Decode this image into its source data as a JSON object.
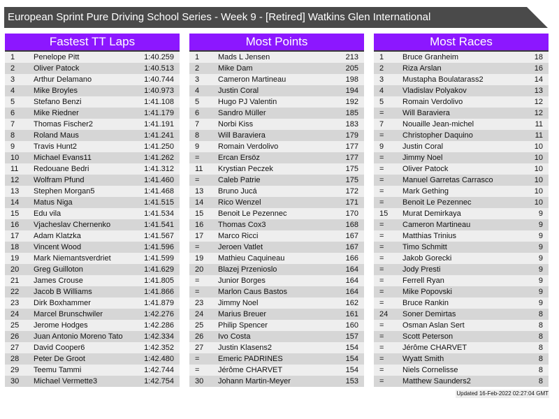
{
  "title": "European Sprint Pure Driving School Series - Week 9 - [Retired] Watkins Glen International",
  "colors": {
    "header_bg": "#8c17ff",
    "title_bg": "#4a4a4a",
    "row_light": "#eeeeee",
    "row_dark": "#d6d6d6"
  },
  "panels": [
    {
      "heading": "Fastest TT Laps",
      "rows": [
        [
          "1",
          "Penelope Pitt",
          "1:40.259"
        ],
        [
          "2",
          "Oliver Patock",
          "1:40.513"
        ],
        [
          "3",
          "Arthur Delamano",
          "1:40.744"
        ],
        [
          "4",
          "Mike Broyles",
          "1:40.973"
        ],
        [
          "5",
          "Stefano Benzi",
          "1:41.108"
        ],
        [
          "6",
          "Mike Riedner",
          "1:41.179"
        ],
        [
          "7",
          "Thomas Fischer2",
          "1:41.191"
        ],
        [
          "8",
          "Roland Maus",
          "1:41.241"
        ],
        [
          "9",
          "Travis Hunt2",
          "1:41.250"
        ],
        [
          "10",
          "Michael Evans11",
          "1:41.262"
        ],
        [
          "11",
          "Redouane Bedri",
          "1:41.312"
        ],
        [
          "12",
          "Wolfram Pfund",
          "1:41.460"
        ],
        [
          "13",
          "Stephen Morgan5",
          "1:41.468"
        ],
        [
          "14",
          "Matus Niga",
          "1:41.515"
        ],
        [
          "15",
          "Edu vila",
          "1:41.534"
        ],
        [
          "16",
          "Vjacheslav Chernenko",
          "1:41.541"
        ],
        [
          "17",
          "Adam Klatzka",
          "1:41.567"
        ],
        [
          "18",
          "Vincent Wood",
          "1:41.596"
        ],
        [
          "19",
          "Mark Niemantsverdriet",
          "1:41.599"
        ],
        [
          "20",
          "Greg Guilloton",
          "1:41.629"
        ],
        [
          "21",
          "James Crouse",
          "1:41.805"
        ],
        [
          "22",
          "Jacob B Williams",
          "1:41.866"
        ],
        [
          "23",
          "Dirk Boxhammer",
          "1:41.879"
        ],
        [
          "24",
          "Marcel Brunschwiler",
          "1:42.276"
        ],
        [
          "25",
          "Jerome Hodges",
          "1:42.286"
        ],
        [
          "26",
          "Juan Antonio Moreno Tato",
          "1:42.334"
        ],
        [
          "27",
          "David Cooper6",
          "1:42.352"
        ],
        [
          "28",
          "Peter De Groot",
          "1:42.480"
        ],
        [
          "29",
          "Teemu Tammi",
          "1:42.744"
        ],
        [
          "30",
          "Michael Vermette3",
          "1:42.754"
        ]
      ]
    },
    {
      "heading": "Most Points",
      "rows": [
        [
          "1",
          "Mads L Jensen",
          "213"
        ],
        [
          "2",
          "Mike Dam",
          "205"
        ],
        [
          "3",
          "Cameron Martineau",
          "198"
        ],
        [
          "4",
          "Justin Coral",
          "194"
        ],
        [
          "5",
          "Hugo PJ Valentin",
          "192"
        ],
        [
          "6",
          "Sandro Müller",
          "185"
        ],
        [
          "7",
          "Norbi Kiss",
          "183"
        ],
        [
          "8",
          "Will Baraviera",
          "179"
        ],
        [
          "9",
          "Romain Verdolivo",
          "177"
        ],
        [
          "=",
          "Ercan Ersöz",
          "177"
        ],
        [
          "11",
          "Krystian Peczek",
          "175"
        ],
        [
          "=",
          "Caleb Patrie",
          "175"
        ],
        [
          "13",
          "Bruno Jucá",
          "172"
        ],
        [
          "14",
          "Rico Wenzel",
          "171"
        ],
        [
          "15",
          "Benoit Le Pezennec",
          "170"
        ],
        [
          "16",
          "Thomas Cox3",
          "168"
        ],
        [
          "17",
          "Marco Ricci",
          "167"
        ],
        [
          "=",
          "Jeroen Vatlet",
          "167"
        ],
        [
          "19",
          "Mathieu Caquineau",
          "166"
        ],
        [
          "20",
          "Blazej Przenioslo",
          "164"
        ],
        [
          "=",
          "Junior Borges",
          "164"
        ],
        [
          "=",
          "Marlon Caus Bastos",
          "164"
        ],
        [
          "23",
          "Jimmy Noel",
          "162"
        ],
        [
          "24",
          "Marius Breuer",
          "161"
        ],
        [
          "25",
          "Philip Spencer",
          "160"
        ],
        [
          "26",
          "Ivo Costa",
          "157"
        ],
        [
          "27",
          "Justin Klasens2",
          "154"
        ],
        [
          "=",
          "Emeric PADRINES",
          "154"
        ],
        [
          "=",
          "Jérôme CHARVET",
          "154"
        ],
        [
          "30",
          "Johann Martin-Meyer",
          "153"
        ]
      ]
    },
    {
      "heading": "Most Races",
      "rows": [
        [
          "1",
          "Bruce Granheim",
          "18"
        ],
        [
          "2",
          "Riza Arslan",
          "16"
        ],
        [
          "3",
          "Mustapha Boulatarass2",
          "14"
        ],
        [
          "4",
          "Vladislav Polyakov",
          "13"
        ],
        [
          "5",
          "Romain Verdolivo",
          "12"
        ],
        [
          "=",
          "Will Baraviera",
          "12"
        ],
        [
          "7",
          "Nouaille Jean-michel",
          "11"
        ],
        [
          "=",
          "Christopher Daquino",
          "11"
        ],
        [
          "9",
          "Justin Coral",
          "10"
        ],
        [
          "=",
          "Jimmy Noel",
          "10"
        ],
        [
          "=",
          "Oliver Patock",
          "10"
        ],
        [
          "=",
          "Manuel Garretas Carrasco",
          "10"
        ],
        [
          "=",
          "Mark Gething",
          "10"
        ],
        [
          "=",
          "Benoit Le Pezennec",
          "10"
        ],
        [
          "15",
          "Murat Demirkaya",
          "9"
        ],
        [
          "=",
          "Cameron Martineau",
          "9"
        ],
        [
          "=",
          "Matthias Trinius",
          "9"
        ],
        [
          "=",
          "Timo Schmitt",
          "9"
        ],
        [
          "=",
          "Jakob Gorecki",
          "9"
        ],
        [
          "=",
          "Jody Presti",
          "9"
        ],
        [
          "=",
          "Ferrell Ryan",
          "9"
        ],
        [
          "=",
          "Mike Popovski",
          "9"
        ],
        [
          "=",
          "Bruce Rankin",
          "9"
        ],
        [
          "24",
          "Soner Demirtas",
          "8"
        ],
        [
          "=",
          "Osman Aslan Sert",
          "8"
        ],
        [
          "=",
          "Scott Peterson",
          "8"
        ],
        [
          "=",
          "Jérôme CHARVET",
          "8"
        ],
        [
          "=",
          "Wyatt Smith",
          "8"
        ],
        [
          "=",
          "Niels Cornelisse",
          "8"
        ],
        [
          "=",
          "Matthew Saunders2",
          "8"
        ]
      ]
    }
  ],
  "footer": "Updated 16-Feb-2022 02:27:04 GMT"
}
